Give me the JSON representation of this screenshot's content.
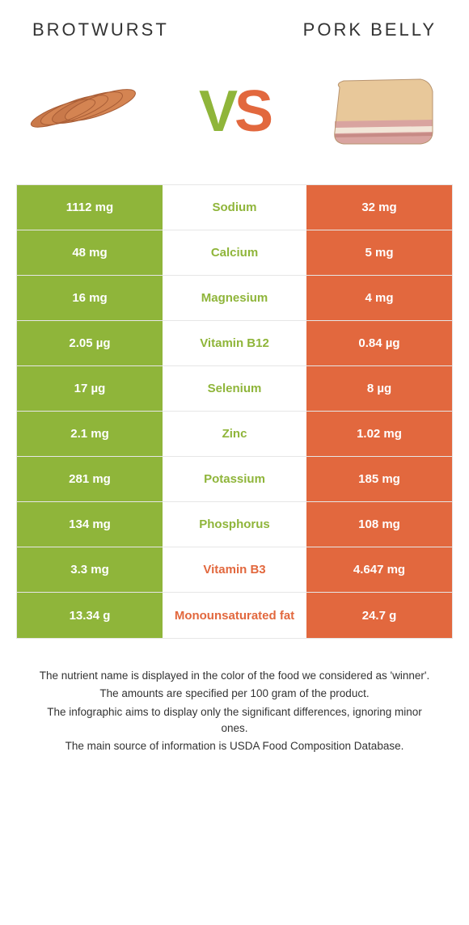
{
  "header": {
    "left": "Brotwurst",
    "right": "Pork belly"
  },
  "vs": {
    "v": "V",
    "s": "S"
  },
  "colors": {
    "green": "#8fb53a",
    "orange": "#e2683e",
    "text": "#333333",
    "border": "#e6e6e6",
    "white": "#ffffff"
  },
  "rows": [
    {
      "left": "1112 mg",
      "label": "Sodium",
      "right": "32 mg",
      "winner": "left"
    },
    {
      "left": "48 mg",
      "label": "Calcium",
      "right": "5 mg",
      "winner": "left"
    },
    {
      "left": "16 mg",
      "label": "Magnesium",
      "right": "4 mg",
      "winner": "left"
    },
    {
      "left": "2.05 µg",
      "label": "Vitamin B12",
      "right": "0.84 µg",
      "winner": "left"
    },
    {
      "left": "17 µg",
      "label": "Selenium",
      "right": "8 µg",
      "winner": "left"
    },
    {
      "left": "2.1 mg",
      "label": "Zinc",
      "right": "1.02 mg",
      "winner": "left"
    },
    {
      "left": "281 mg",
      "label": "Potassium",
      "right": "185 mg",
      "winner": "left"
    },
    {
      "left": "134 mg",
      "label": "Phosphorus",
      "right": "108 mg",
      "winner": "left"
    },
    {
      "left": "3.3 mg",
      "label": "Vitamin B3",
      "right": "4.647 mg",
      "winner": "right"
    },
    {
      "left": "13.34 g",
      "label": "Monounsaturated fat",
      "right": "24.7 g",
      "winner": "right"
    }
  ],
  "notes": [
    "The nutrient name is displayed in the color of the food we considered as 'winner'.",
    "The amounts are specified per 100 gram of the product.",
    "The infographic aims to display only the significant differences, ignoring minor ones.",
    "The main source of information is USDA Food Composition Database."
  ]
}
